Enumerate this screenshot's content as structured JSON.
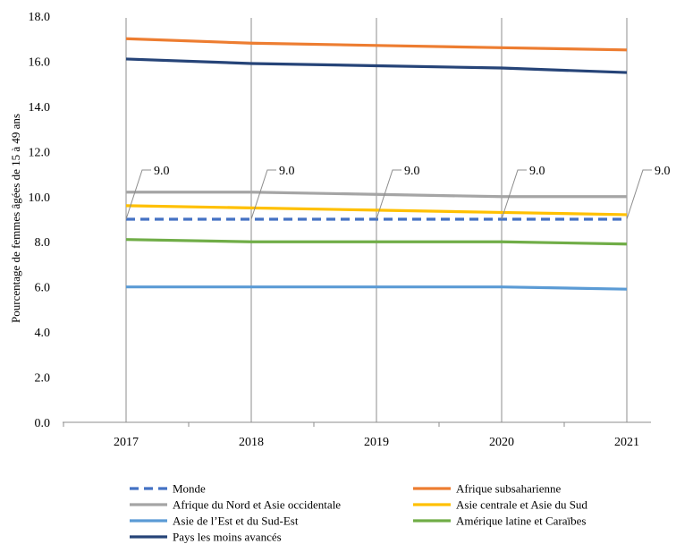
{
  "chart_data": {
    "type": "line",
    "title": "",
    "xlabel": "",
    "ylabel": "Pourcentage de femmes âgées de 15 à 49 ans",
    "x": [
      "2017",
      "2018",
      "2019",
      "2020",
      "2021"
    ],
    "ylim": [
      0,
      18
    ],
    "yticks": [
      "0.0",
      "2.0",
      "4.0",
      "6.0",
      "8.0",
      "10.0",
      "12.0",
      "14.0",
      "16.0",
      "18.0"
    ],
    "grid": "vertical",
    "legend_position": "bottom",
    "series": [
      {
        "name": "Monde",
        "color": "#4472C4",
        "dashed": true,
        "values": [
          9.0,
          9.0,
          9.0,
          9.0,
          9.0
        ],
        "labels": [
          "9.0",
          "9.0",
          "9.0",
          "9.0",
          "9.0"
        ]
      },
      {
        "name": "Afrique subsaharienne",
        "color": "#ED7D31",
        "dashed": false,
        "values": [
          17.0,
          16.8,
          16.7,
          16.6,
          16.5
        ]
      },
      {
        "name": "Afrique du Nord et Asie occidentale",
        "color": "#A5A5A5",
        "dashed": false,
        "values": [
          10.2,
          10.2,
          10.1,
          10.0,
          10.0
        ]
      },
      {
        "name": "Asie centrale et Asie du Sud",
        "color": "#FFC000",
        "dashed": false,
        "values": [
          9.6,
          9.5,
          9.4,
          9.3,
          9.2
        ]
      },
      {
        "name": "Asie de l’Est et du Sud-Est",
        "color": "#5B9BD5",
        "dashed": false,
        "values": [
          6.0,
          6.0,
          6.0,
          6.0,
          5.9
        ]
      },
      {
        "name": "Amérique latine et Caraïbes",
        "color": "#70AD47",
        "dashed": false,
        "values": [
          8.1,
          8.0,
          8.0,
          8.0,
          7.9
        ]
      },
      {
        "name": "Pays les moins avancés",
        "color": "#264478",
        "dashed": false,
        "values": [
          16.1,
          15.9,
          15.8,
          15.7,
          15.5
        ]
      }
    ]
  }
}
